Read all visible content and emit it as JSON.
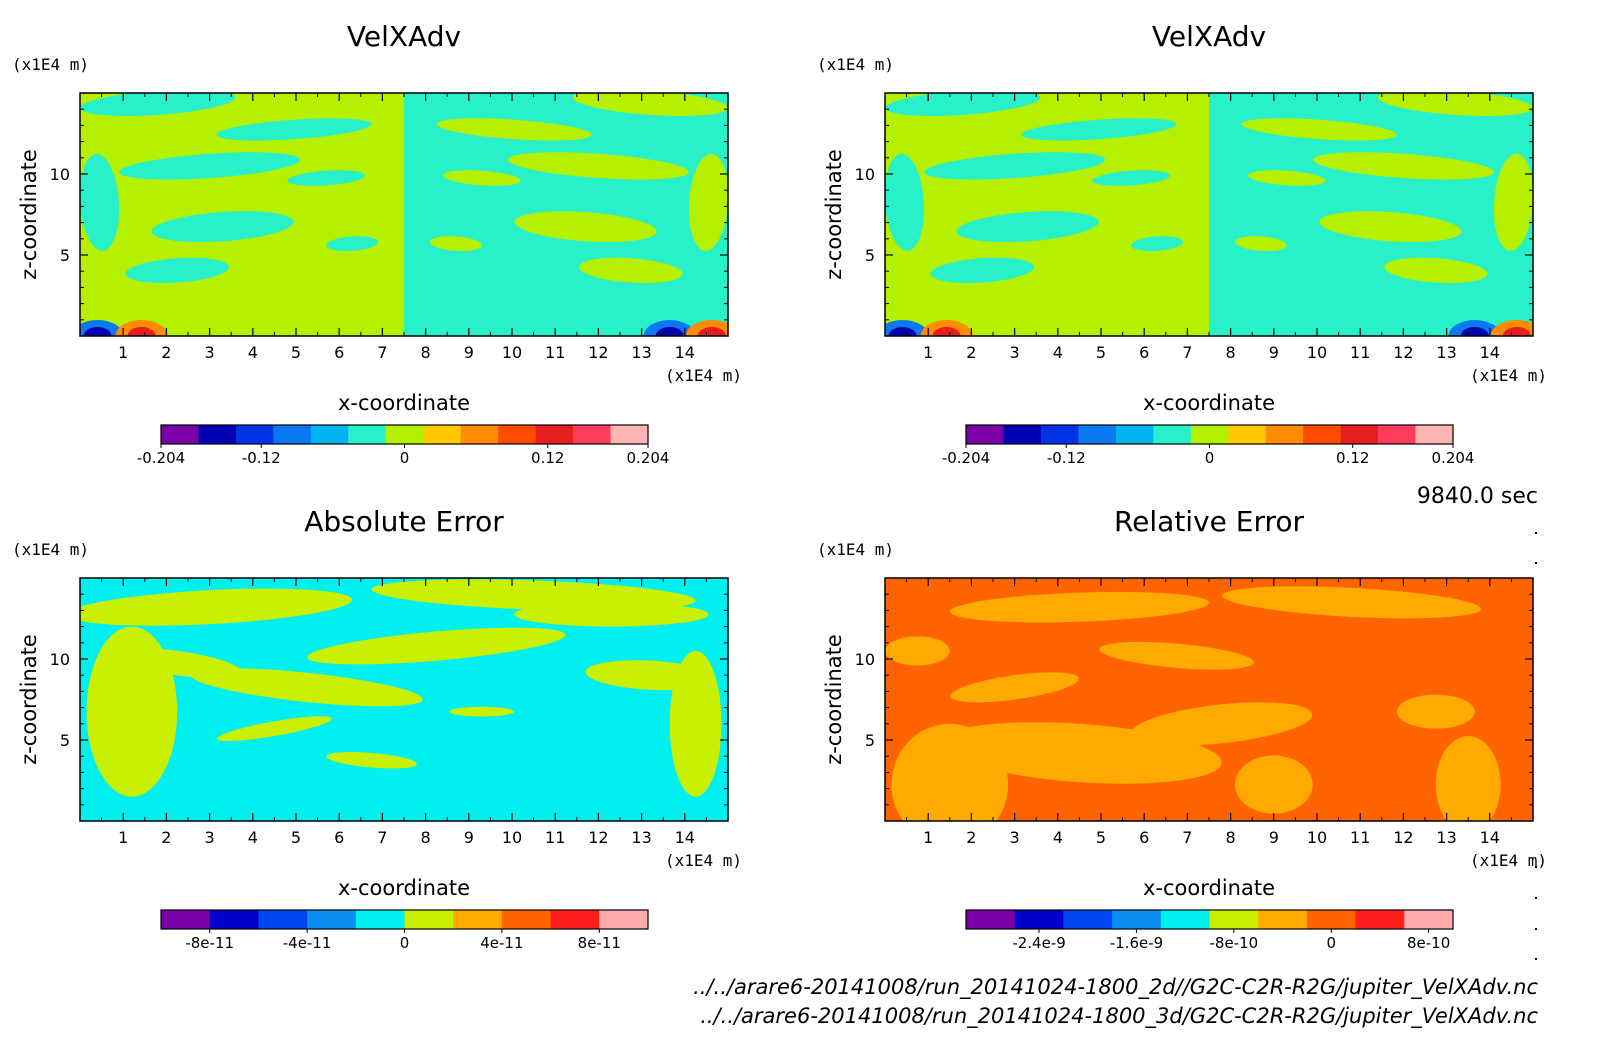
{
  "time_label": "9840.0 sec",
  "footer_lines": [
    "../../arare6-20141008/run_20141024-1800_2d//G2C-C2R-R2G/jupiter_VelXAdv.nc",
    "../../arare6-20141008/run_20141024-1800_3d/G2C-C2R-R2G/jupiter_VelXAdv.nc"
  ],
  "chart_data": [
    {
      "type": "heatmap",
      "title": "VelXAdv",
      "xlabel": "x-coordinate",
      "ylabel": "z-coordinate",
      "x_unit": "(x1E4 m)",
      "y_unit": "(x1E4 m)",
      "xlim": [
        0,
        15
      ],
      "ylim": [
        0,
        15
      ],
      "x_ticks": [
        1,
        2,
        3,
        4,
        5,
        6,
        7,
        8,
        9,
        10,
        11,
        12,
        13,
        14
      ],
      "y_ticks": [
        5,
        10
      ],
      "pattern": "split",
      "colorbar": {
        "colors": [
          "#7a00a8",
          "#0000b0",
          "#0032e6",
          "#0a78f0",
          "#00b4f0",
          "#28f0c8",
          "#b4f000",
          "#ffc800",
          "#ff8c00",
          "#ff4b00",
          "#e61e1e",
          "#ff3c5a",
          "#ffb4b4"
        ],
        "ticks": [
          {
            "value": -0.204,
            "label": "-0.204"
          },
          {
            "value": -0.12,
            "label": "-0.12"
          },
          {
            "value": 0,
            "label": "0"
          },
          {
            "value": 0.12,
            "label": "0.12"
          },
          {
            "value": 0.204,
            "label": "0.204"
          }
        ],
        "range": [
          -0.204,
          0.204
        ]
      }
    },
    {
      "type": "heatmap",
      "title": "VelXAdv",
      "xlabel": "x-coordinate",
      "ylabel": "z-coordinate",
      "x_unit": "(x1E4 m)",
      "y_unit": "(x1E4 m)",
      "xlim": [
        0,
        15
      ],
      "ylim": [
        0,
        15
      ],
      "x_ticks": [
        1,
        2,
        3,
        4,
        5,
        6,
        7,
        8,
        9,
        10,
        11,
        12,
        13,
        14
      ],
      "y_ticks": [
        5,
        10
      ],
      "pattern": "split",
      "colorbar": {
        "colors": [
          "#7a00a8",
          "#0000b0",
          "#0032e6",
          "#0a78f0",
          "#00b4f0",
          "#28f0c8",
          "#b4f000",
          "#ffc800",
          "#ff8c00",
          "#ff4b00",
          "#e61e1e",
          "#ff3c5a",
          "#ffb4b4"
        ],
        "ticks": [
          {
            "value": -0.204,
            "label": "-0.204"
          },
          {
            "value": -0.12,
            "label": "-0.12"
          },
          {
            "value": 0,
            "label": "0"
          },
          {
            "value": 0.12,
            "label": "0.12"
          },
          {
            "value": 0.204,
            "label": "0.204"
          }
        ],
        "range": [
          -0.204,
          0.204
        ]
      }
    },
    {
      "type": "heatmap",
      "title": "Absolute Error",
      "xlabel": "x-coordinate",
      "ylabel": "z-coordinate",
      "x_unit": "(x1E4 m)",
      "y_unit": "(x1E4 m)",
      "xlim": [
        0,
        15
      ],
      "ylim": [
        0,
        15
      ],
      "x_ticks": [
        1,
        2,
        3,
        4,
        5,
        6,
        7,
        8,
        9,
        10,
        11,
        12,
        13,
        14
      ],
      "y_ticks": [
        5,
        10
      ],
      "pattern": "abs",
      "colorbar": {
        "colors": [
          "#7a00a8",
          "#0000c8",
          "#0046f0",
          "#0a8cf0",
          "#00f0f0",
          "#c8f000",
          "#ffaa00",
          "#ff6400",
          "#ff1e1e",
          "#ffaaaa"
        ],
        "ticks": [
          {
            "value": -8e-11,
            "label": "-8e-11"
          },
          {
            "value": -4e-11,
            "label": "-4e-11"
          },
          {
            "value": 0,
            "label": "0"
          },
          {
            "value": 4e-11,
            "label": "4e-11"
          },
          {
            "value": 8e-11,
            "label": "8e-11"
          }
        ],
        "range": [
          -1e-10,
          1e-10
        ]
      }
    },
    {
      "type": "heatmap",
      "title": "Relative Error",
      "xlabel": "x-coordinate",
      "ylabel": "z-coordinate",
      "x_unit": "(x1E4 m)",
      "y_unit": "(x1E4 m)",
      "xlim": [
        0,
        15
      ],
      "ylim": [
        0,
        15
      ],
      "x_ticks": [
        1,
        2,
        3,
        4,
        5,
        6,
        7,
        8,
        9,
        10,
        11,
        12,
        13,
        14
      ],
      "y_ticks": [
        5,
        10
      ],
      "pattern": "rel",
      "colorbar": {
        "colors": [
          "#7a00a8",
          "#0000c8",
          "#0046f0",
          "#0a8cf0",
          "#00f0f0",
          "#c8f000",
          "#ffaa00",
          "#ff6400",
          "#ff1e1e",
          "#ffaaaa"
        ],
        "ticks": [
          {
            "value": -2.4e-09,
            "label": "-2.4e-9"
          },
          {
            "value": -1.6e-09,
            "label": "-1.6e-9"
          },
          {
            "value": -8e-10,
            "label": "-8e-10"
          },
          {
            "value": 0,
            "label": "0"
          },
          {
            "value": 8e-10,
            "label": "8e-10"
          }
        ],
        "range": [
          -3e-09,
          1e-09
        ]
      }
    }
  ]
}
